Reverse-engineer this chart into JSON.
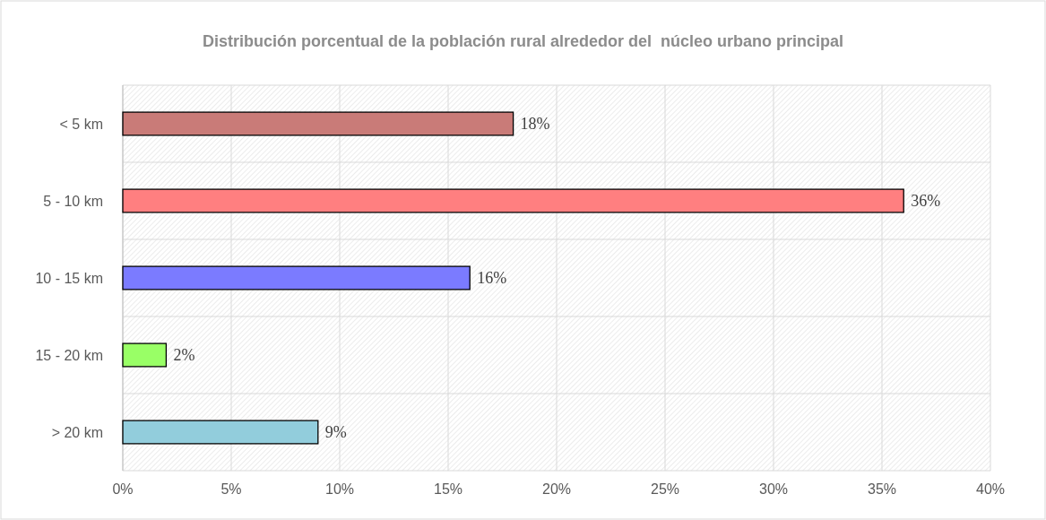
{
  "chart_data": {
    "type": "bar",
    "orientation": "horizontal",
    "title": "Distribución porcentual de la población rural alrededor del  núcleo urbano principal",
    "categories": [
      "< 5 km",
      "5 - 10 km",
      "10 - 15 km",
      "15 - 20 km",
      "> 20 km"
    ],
    "values": [
      18,
      36,
      16,
      2,
      9
    ],
    "colors": [
      "#c97b78",
      "#ff7f80",
      "#7b7bff",
      "#99ff66",
      "#92cddc"
    ],
    "value_labels": [
      "18%",
      "36%",
      "16%",
      "2%",
      "9%"
    ],
    "xlim": [
      0,
      40
    ],
    "xticks": [
      {
        "value": 0,
        "label": "0%"
      },
      {
        "value": 5,
        "label": "5%"
      },
      {
        "value": 10,
        "label": "10%"
      },
      {
        "value": 15,
        "label": "15%"
      },
      {
        "value": 20,
        "label": "20%"
      },
      {
        "value": 25,
        "label": "25%"
      },
      {
        "value": 30,
        "label": "30%"
      },
      {
        "value": 35,
        "label": "35%"
      },
      {
        "value": 40,
        "label": "40%"
      }
    ],
    "grid": true
  }
}
